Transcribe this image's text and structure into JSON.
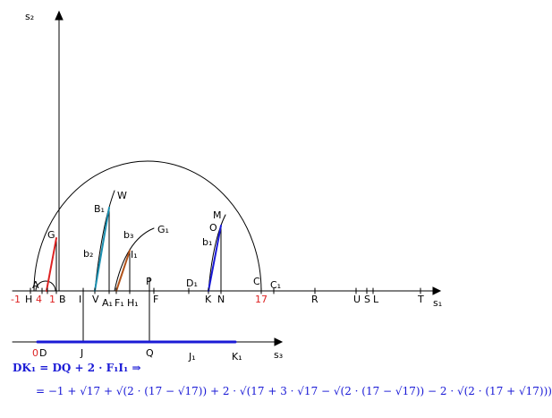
{
  "axes": {
    "s1": "s₁",
    "s2": "s₂",
    "s3": "s₃"
  },
  "labels": [
    "-1",
    "H",
    "4",
    "1",
    "B",
    "I",
    "V",
    "A₁",
    "F₁",
    "H₁",
    "P",
    "F",
    "D₁",
    "K",
    "N",
    "C",
    "C₁",
    "17",
    "R",
    "U",
    "S",
    "L",
    "T",
    "A",
    "G",
    "B₁",
    "W",
    "b₂",
    "b₃",
    "G₁",
    "I₁",
    "O",
    "M",
    "b₁",
    "0",
    "D",
    "J",
    "Q",
    "J₁",
    "K₁"
  ],
  "equation": {
    "line1": "DK₁ = DQ + 2 · F₁I₁ ⇒",
    "line2": "= −1 + √17 + √(2 · (17 − √17)) + 2 · √(17 + 3 · √17 − √(2 · (17 − √17)) − 2 · √(2 · (17 + √17)))"
  }
}
